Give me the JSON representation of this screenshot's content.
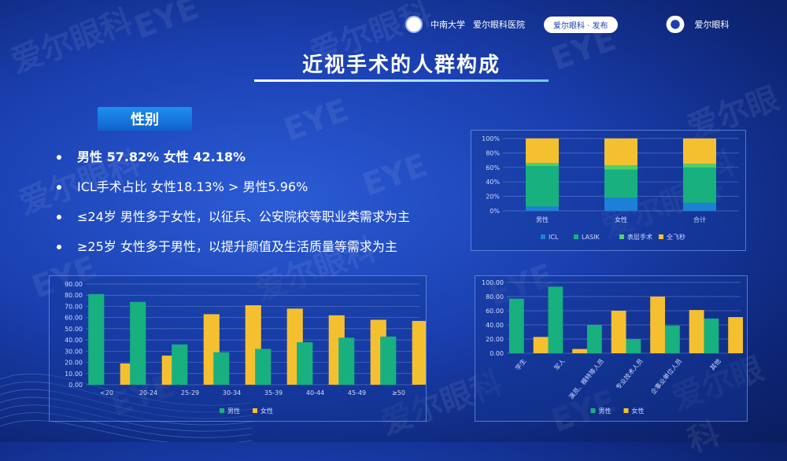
{
  "header": {
    "university": "中南大学",
    "hospital": "爱尔眼科医院",
    "pill": "爱尔眼科 · 发布",
    "brand": "爱尔眼科"
  },
  "title": "近视手术的人群构成",
  "section_tag": "性别",
  "bullets": [
    {
      "text": "男性 57.82% 女性 42.18%",
      "bold": true
    },
    {
      "text": "ICL手术占比  女性18.13% > 男性5.96%",
      "bold": false
    },
    {
      "text": "≤24岁 男性多于女性，以征兵、公安院校等职业类需求为主",
      "bold": false
    },
    {
      "text": "≥25岁 女性多于男性，以提升颜值及生活质量等需求为主",
      "bold": false
    }
  ],
  "watermarks": [
    "爱尔眼科",
    "EYE",
    "爱尔眼科",
    "EYE",
    "爱尔眼科",
    "EYE",
    "爱尔眼科",
    "EYE"
  ],
  "colors": {
    "green": "#18b07e",
    "yellow": "#f5c030",
    "lightgreen": "#4fd16a",
    "blue": "#1e7fd6"
  },
  "chart_data": [
    {
      "id": "stacked",
      "type": "bar",
      "stacked": true,
      "categories": [
        "男性",
        "女性",
        "合计"
      ],
      "series": [
        {
          "name": "ICL",
          "values": [
            6,
            18,
            11
          ],
          "color": "#1e7fd6"
        },
        {
          "name": "LASIK",
          "values": [
            56,
            39,
            49
          ],
          "color": "#18b07e"
        },
        {
          "name": "表层手术",
          "values": [
            4,
            6,
            5
          ],
          "color": "#4fd16a"
        },
        {
          "name": "全飞秒",
          "values": [
            34,
            37,
            35
          ],
          "color": "#f5c030"
        }
      ],
      "yticks": [
        "0%",
        "20%",
        "40%",
        "60%",
        "80%",
        "100%"
      ],
      "ylim": [
        0,
        100
      ],
      "legend": "bottom"
    },
    {
      "id": "age",
      "type": "bar",
      "categories": [
        "<20",
        "20-24",
        "25-29",
        "30-34",
        "35-39",
        "40-44",
        "45-49",
        "≥50"
      ],
      "series": [
        {
          "name": "男性",
          "values": [
            81,
            74,
            36,
            29,
            32,
            38,
            42,
            43
          ],
          "color": "#18b07e"
        },
        {
          "name": "女性",
          "values": [
            19,
            26,
            63,
            71,
            68,
            62,
            58,
            57
          ],
          "color": "#f5c030"
        }
      ],
      "yticks": [
        "0.00",
        "10.00",
        "20.00",
        "30.00",
        "40.00",
        "50.00",
        "60.00",
        "70.00",
        "80.00",
        "90.00"
      ],
      "ylim": [
        0,
        90
      ],
      "legend": "bottom"
    },
    {
      "id": "occupation",
      "type": "bar",
      "categories": [
        "学生",
        "军人",
        "演员、模特等人员",
        "专业技术人员",
        "企事业单位人员",
        "其他"
      ],
      "series": [
        {
          "name": "男性",
          "values": [
            77,
            94,
            40,
            20,
            39,
            49
          ],
          "color": "#18b07e"
        },
        {
          "name": "女性",
          "values": [
            23,
            6,
            60,
            80,
            61,
            51
          ],
          "color": "#f5c030"
        }
      ],
      "yticks": [
        "0.00",
        "20.00",
        "40.00",
        "60.00",
        "80.00",
        "100.00"
      ],
      "ylim": [
        0,
        100
      ],
      "legend": "bottom"
    }
  ]
}
